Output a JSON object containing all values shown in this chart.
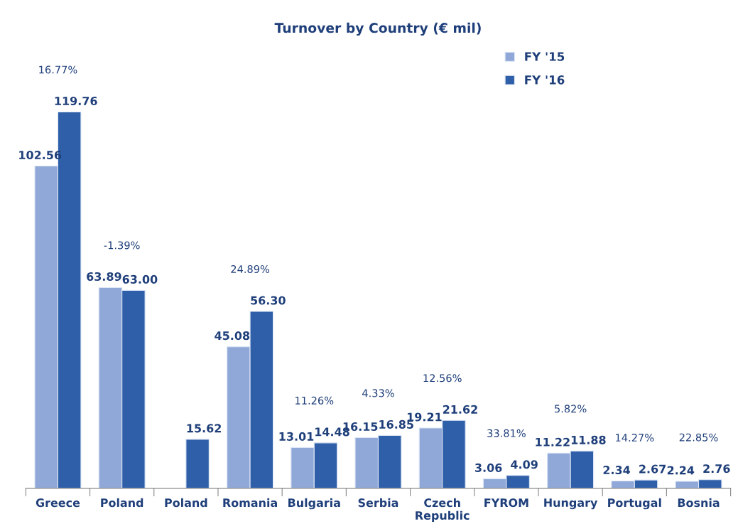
{
  "chart_data": {
    "type": "bar",
    "title": "Turnover by Country (€ mil)",
    "categories": [
      "Greece",
      "Poland",
      "Poland",
      "Romania",
      "Bulgaria",
      "Serbia",
      "Czech\nRepublic",
      "FYROM",
      "Hungary",
      "Portugal",
      "Bosnia"
    ],
    "series": [
      {
        "name": "FY '15",
        "color": "#8fa8d8",
        "values": [
          102.56,
          63.89,
          null,
          45.08,
          13.01,
          16.15,
          19.21,
          3.06,
          11.22,
          2.34,
          2.24
        ],
        "value_labels": [
          "102.56",
          "63.89",
          null,
          "45.08",
          "13.01",
          "16.15",
          "19.21",
          "3.06",
          "11.22",
          "2.34",
          "2.24"
        ]
      },
      {
        "name": "FY '16",
        "color": "#2e5fa8",
        "values": [
          119.76,
          63.0,
          15.62,
          56.3,
          14.48,
          16.85,
          21.62,
          4.09,
          11.88,
          2.67,
          2.76
        ],
        "value_labels": [
          "119.76",
          "63.00",
          "15.62",
          "56.30",
          "14.48",
          "16.85",
          "21.62",
          "4.09",
          "11.88",
          "2.67",
          "2.76"
        ]
      }
    ],
    "legend": "top right",
    "grid": false,
    "annotations": [
      "16.77%",
      "-1.39%",
      "24.89%",
      "11.26%",
      "4.33%",
      "12.56%",
      "33.81%",
      "5.82%",
      "14.27%",
      "22.85%"
    ]
  }
}
